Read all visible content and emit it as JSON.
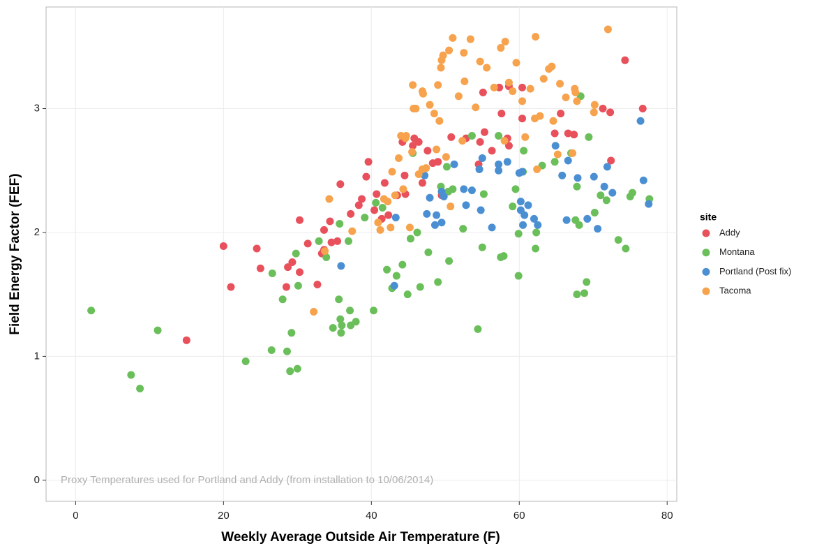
{
  "chart_data": {
    "type": "scatter",
    "x_label": "Weekly Average Outside Air Temperature (F)",
    "y_label": "Field Energy Factor (FEF)",
    "annotation": "Proxy Temperatures used for Portland and Addy (from installation to 10/06/2014)",
    "legend_title": "site",
    "legend_position": "right",
    "grid": true,
    "xlim": [
      -4,
      81.3
    ],
    "ylim": [
      -0.17,
      3.82
    ],
    "xticks": [
      0,
      20,
      40,
      60,
      80
    ],
    "yticks": [
      0,
      1,
      2,
      3
    ],
    "series": [
      {
        "name": "Addy",
        "color": "#e8505b",
        "x": [
          15,
          20,
          21,
          24.5,
          25,
          28.5,
          28.7,
          29.3,
          30.3,
          30.3,
          31.4,
          32.7,
          33.3,
          33.6,
          33.6,
          34.4,
          34.6,
          35.4,
          35.8,
          37.2,
          38.3,
          38.7,
          39.3,
          39.6,
          40.4,
          40.7,
          41.4,
          41.8,
          42.3,
          43.5,
          44.2,
          44.5,
          44.6,
          45.6,
          45.8,
          46.4,
          46.9,
          47.6,
          48.3,
          49.5,
          50.8,
          52.8,
          54.7,
          55.1,
          55.3,
          56.3,
          57.3,
          57.6,
          58.4,
          58.6,
          58.6,
          60.4,
          60.4,
          64.8,
          65.6,
          66.6,
          67.4,
          71.3,
          72.3,
          72.4,
          74.3,
          76.7,
          49,
          54.5
        ],
        "values": [
          1.13,
          1.89,
          1.56,
          1.87,
          1.71,
          1.56,
          1.72,
          1.76,
          1.68,
          2.1,
          1.91,
          1.58,
          1.83,
          1.86,
          2.02,
          2.09,
          1.92,
          1.93,
          2.39,
          2.15,
          2.22,
          2.27,
          2.45,
          2.57,
          2.18,
          2.31,
          2.11,
          2.4,
          2.14,
          2.3,
          2.73,
          2.46,
          2.31,
          2.7,
          2.76,
          2.73,
          2.4,
          2.66,
          2.56,
          2.3,
          2.77,
          2.76,
          2.73,
          3.13,
          2.81,
          2.66,
          3.17,
          2.96,
          2.76,
          2.7,
          3.18,
          3.17,
          2.92,
          2.8,
          2.96,
          2.8,
          2.79,
          3.0,
          2.97,
          2.58,
          3.39,
          3.0,
          2.57,
          2.55
        ]
      },
      {
        "name": "Montana",
        "color": "#6abf5a",
        "x": [
          2.1,
          7.5,
          8.7,
          11.1,
          23,
          26.5,
          26.6,
          28,
          28.6,
          29,
          29.2,
          29.8,
          30,
          30.1,
          32.9,
          33.9,
          34.8,
          35.6,
          35.7,
          35.8,
          35.9,
          36,
          36.9,
          37.1,
          37.2,
          37.9,
          39.1,
          40.3,
          40.6,
          41.5,
          42.1,
          42.8,
          43.4,
          44.2,
          44.9,
          45.3,
          45.6,
          46.2,
          46.6,
          47.7,
          49,
          49.4,
          50.5,
          50.4,
          52.4,
          53.6,
          54.4,
          55,
          55.2,
          57.2,
          57.5,
          57.9,
          59.1,
          59.5,
          59.9,
          59.9,
          60.5,
          60.6,
          62.2,
          62.3,
          63.1,
          64.8,
          67,
          67.6,
          67.8,
          67.8,
          68.1,
          68.3,
          68.8,
          69.1,
          69.4,
          70.2,
          71,
          71.8,
          73.4,
          74.4,
          75,
          75.3,
          77.6,
          51,
          50.2
        ],
        "values": [
          1.37,
          0.85,
          0.74,
          1.21,
          0.96,
          1.05,
          1.67,
          1.46,
          1.04,
          0.88,
          1.19,
          1.83,
          0.9,
          1.57,
          1.93,
          1.8,
          1.23,
          1.46,
          2.07,
          1.3,
          1.19,
          1.25,
          1.93,
          1.37,
          1.25,
          1.28,
          2.12,
          1.37,
          2.24,
          2.2,
          1.7,
          1.55,
          1.65,
          1.74,
          1.5,
          1.95,
          2.64,
          2.0,
          1.56,
          1.84,
          1.6,
          2.37,
          1.77,
          2.33,
          2.03,
          2.78,
          1.22,
          1.88,
          2.31,
          2.78,
          1.8,
          1.81,
          2.21,
          2.35,
          1.65,
          1.99,
          2.49,
          2.66,
          1.87,
          2.0,
          2.54,
          2.57,
          2.64,
          2.1,
          1.5,
          2.37,
          2.06,
          3.1,
          1.51,
          1.6,
          2.77,
          2.16,
          2.3,
          2.26,
          1.94,
          1.87,
          2.29,
          2.32,
          2.27,
          2.35,
          2.53
        ]
      },
      {
        "name": "Portland (Post fix)",
        "color": "#4b8fd3",
        "x": [
          35.9,
          43.1,
          43.3,
          47.2,
          47.5,
          47.9,
          48.6,
          48.8,
          49.5,
          49.5,
          49.8,
          51.2,
          52.5,
          52.8,
          53.6,
          54.6,
          54.8,
          55,
          56.3,
          57.2,
          57.2,
          58.4,
          60,
          60.2,
          60.2,
          60.5,
          60.7,
          61.2,
          62,
          62.5,
          64.9,
          65.8,
          66.4,
          66.6,
          67.9,
          69.2,
          70.1,
          70.6,
          71.5,
          71.9,
          72.6,
          76.4,
          76.8,
          77.5,
          60.4
        ],
        "values": [
          1.73,
          1.57,
          2.12,
          2.46,
          2.15,
          2.28,
          2.06,
          2.14,
          2.08,
          2.33,
          2.29,
          2.55,
          2.35,
          2.22,
          2.34,
          2.51,
          2.18,
          2.6,
          2.04,
          2.5,
          2.55,
          2.57,
          2.48,
          2.25,
          2.18,
          2.06,
          2.14,
          2.22,
          2.11,
          2.06,
          2.7,
          2.46,
          2.1,
          2.58,
          2.44,
          2.11,
          2.45,
          2.03,
          2.37,
          2.53,
          2.32,
          2.9,
          2.42,
          2.23,
          2.49
        ]
      },
      {
        "name": "Tacoma",
        "color": "#f7a24c",
        "x": [
          32.2,
          33.7,
          34.3,
          37.4,
          40.9,
          41.2,
          41.7,
          42.2,
          42.6,
          42.8,
          43.2,
          43.7,
          44,
          44.3,
          44.6,
          44.7,
          45.2,
          45.5,
          45.6,
          45.7,
          46,
          46.4,
          46.9,
          46.9,
          47,
          47.4,
          47.9,
          48.5,
          48.8,
          49,
          49.2,
          49.4,
          49.5,
          49.7,
          50.1,
          50.5,
          50.7,
          51,
          51.8,
          52.5,
          52.6,
          53.4,
          54.1,
          54.7,
          55.6,
          56.6,
          57.5,
          58,
          58.1,
          58.6,
          59.1,
          59.6,
          60.4,
          61.5,
          62.1,
          62.2,
          62.8,
          63.3,
          64,
          64.4,
          64.6,
          65.2,
          65.5,
          66.3,
          67.5,
          67.6,
          67.8,
          70.1,
          70.2,
          72,
          62.4,
          60.8,
          67.2,
          52.3
        ],
        "values": [
          1.36,
          1.85,
          2.27,
          2.01,
          2.08,
          2.02,
          2.27,
          2.25,
          2.04,
          2.49,
          2.3,
          2.6,
          2.78,
          2.35,
          2.76,
          2.78,
          2.04,
          2.65,
          3.19,
          3.0,
          3.0,
          2.47,
          2.51,
          3.14,
          3.12,
          2.52,
          3.03,
          2.96,
          2.67,
          3.19,
          2.9,
          3.33,
          3.39,
          3.43,
          2.61,
          3.47,
          2.21,
          3.57,
          3.1,
          3.45,
          3.22,
          3.56,
          3.01,
          3.38,
          3.33,
          3.17,
          3.49,
          2.74,
          3.54,
          3.21,
          3.14,
          3.37,
          3.06,
          3.16,
          2.92,
          3.58,
          2.94,
          3.24,
          3.32,
          3.34,
          2.9,
          2.63,
          3.2,
          3.09,
          3.16,
          3.13,
          3.06,
          2.97,
          3.03,
          3.64,
          2.51,
          2.77,
          2.64,
          2.74
        ]
      }
    ]
  }
}
